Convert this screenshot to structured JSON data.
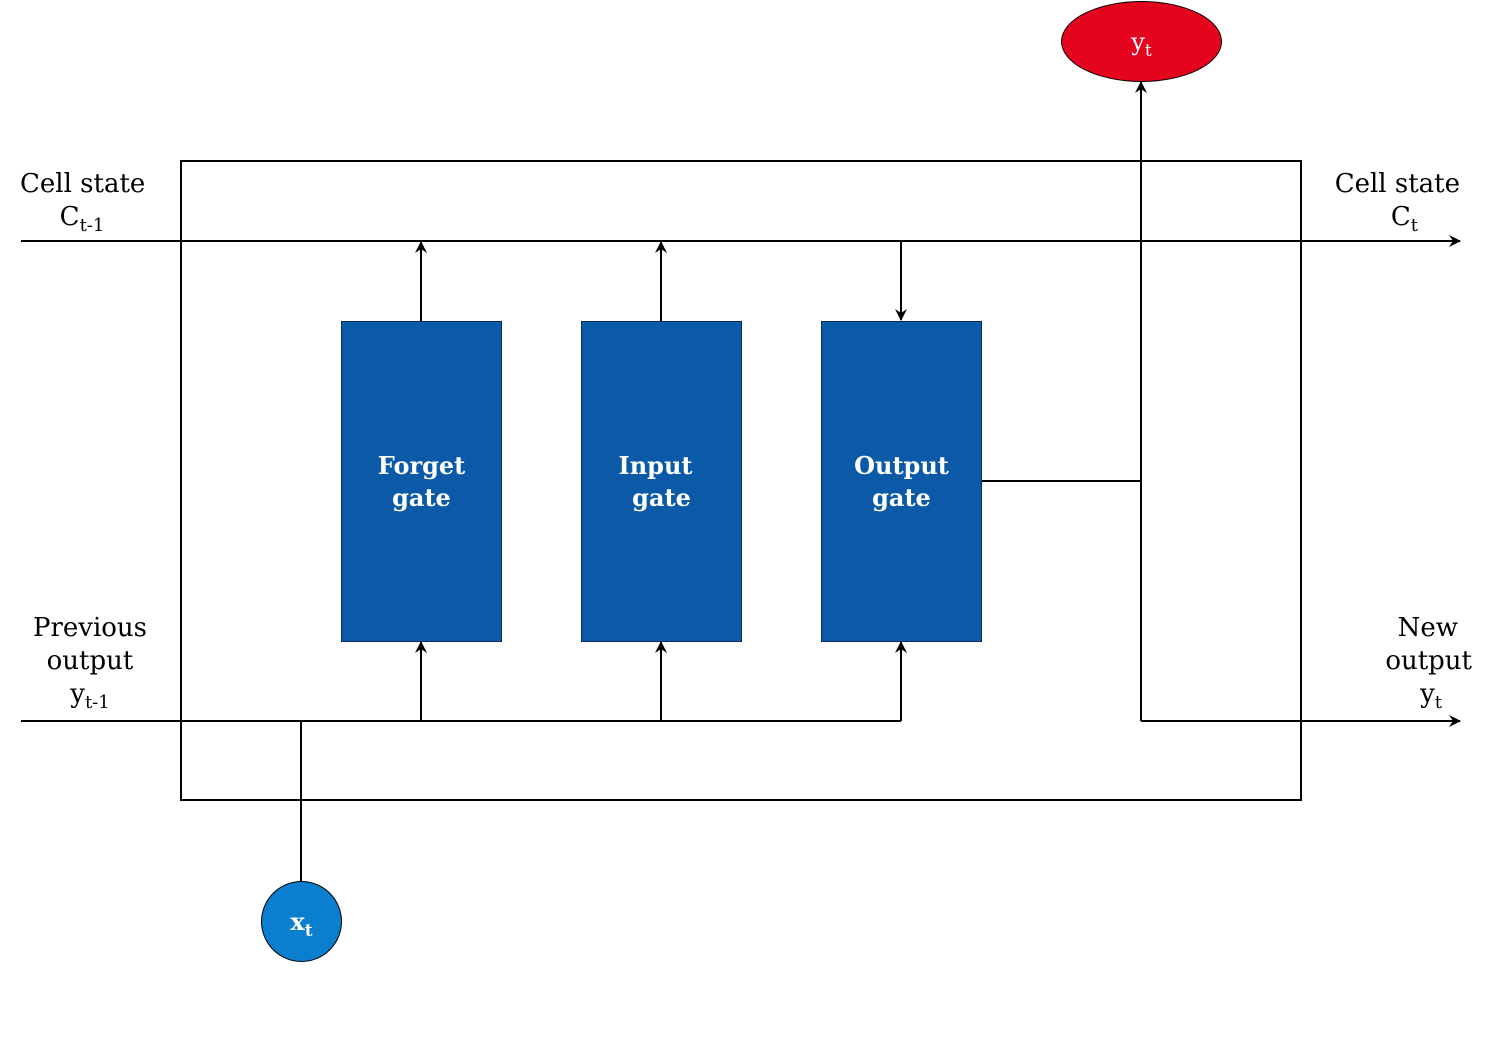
{
  "colors": {
    "gate_fill": "#0a5aa8",
    "input_node_fill": "#0a7fcf",
    "output_node_fill": "#e5041d",
    "line": "#000000"
  },
  "labels": {
    "cell_state_in": {
      "line1": "Cell state",
      "symbol": "C",
      "subscript": "t-1"
    },
    "cell_state_out": {
      "line1": "Cell state",
      "symbol": "C",
      "subscript": "t"
    },
    "prev_output": {
      "line1": "Previous",
      "line2": "output",
      "symbol": "y",
      "subscript": "t-1"
    },
    "new_output": {
      "line1": "New",
      "line2": "output",
      "symbol": "y",
      "subscript": "t"
    }
  },
  "gates": {
    "forget": {
      "line1": "Forget",
      "line2": "gate"
    },
    "input": {
      "line1": "Input",
      "line2": "gate"
    },
    "output": {
      "line1": "Output",
      "line2": "gate"
    }
  },
  "nodes": {
    "input_x": {
      "symbol": "x",
      "subscript": "t"
    },
    "output_y": {
      "symbol": "y",
      "subscript": "t"
    }
  }
}
